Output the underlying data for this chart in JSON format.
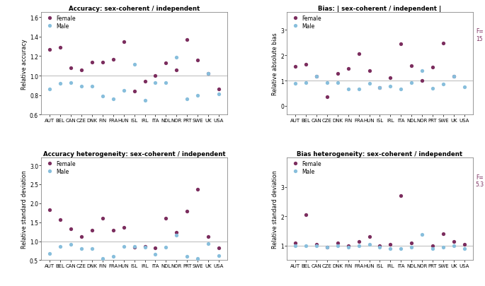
{
  "countries": [
    "AUT",
    "BEL",
    "CAN",
    "CZE",
    "DNK",
    "FIN",
    "FRA",
    "HUN",
    "ISL",
    "IRL",
    "ITA",
    "NDL",
    "NOR",
    "PRT",
    "SWE",
    "UK",
    "USA"
  ],
  "female_color": "#7B2D5E",
  "male_color": "#87BEDC",
  "ref_line_color": "#C0C0C0",
  "background_color": "#FFFFFF",
  "acc_female": [
    1.27,
    1.29,
    1.08,
    1.06,
    1.14,
    1.14,
    1.17,
    1.35,
    0.84,
    0.94,
    1.0,
    1.13,
    1.06,
    1.37,
    1.16,
    1.02,
    0.86
  ],
  "acc_male": [
    0.86,
    0.92,
    0.93,
    0.89,
    0.89,
    0.79,
    0.76,
    0.85,
    1.12,
    0.75,
    0.93,
    0.93,
    1.19,
    0.76,
    0.8,
    1.02,
    0.81
  ],
  "bias_female": [
    1.55,
    1.65,
    1.18,
    0.35,
    1.28,
    1.47,
    2.05,
    1.4,
    0.72,
    1.12,
    2.45,
    1.6,
    1.0,
    1.52,
    2.48,
    1.18,
    null
  ],
  "bias_male": [
    0.9,
    0.91,
    1.18,
    0.91,
    0.91,
    0.67,
    0.67,
    0.9,
    0.72,
    0.79,
    0.66,
    0.91,
    1.4,
    0.68,
    0.86,
    1.17,
    0.76
  ],
  "bias_ylim": [
    -0.35,
    3.7
  ],
  "bias_yticks": [
    0,
    1,
    2,
    3
  ],
  "acc_het_female": [
    1.83,
    1.57,
    1.32,
    1.12,
    1.29,
    1.6,
    1.29,
    1.37,
    0.84,
    0.86,
    0.82,
    1.6,
    1.24,
    1.8,
    2.36,
    1.12,
    0.82
  ],
  "acc_het_male": [
    0.68,
    0.87,
    0.91,
    0.8,
    0.8,
    0.55,
    0.6,
    0.87,
    0.87,
    0.85,
    0.65,
    0.85,
    1.16,
    0.6,
    0.55,
    0.94,
    0.62
  ],
  "bias_het_female": [
    1.1,
    2.05,
    1.05,
    0.95,
    1.1,
    1.0,
    1.15,
    1.3,
    1.0,
    1.05,
    2.7,
    1.1,
    null,
    1.0,
    1.4,
    1.15,
    1.05
  ],
  "bias_het_male": [
    1.0,
    1.0,
    1.0,
    0.95,
    1.0,
    0.95,
    1.0,
    1.05,
    0.95,
    0.9,
    0.9,
    0.95,
    1.38,
    0.9,
    0.95,
    1.0,
    0.9
  ],
  "titles": [
    "Accuracy: sex-coherent / independent",
    "Bias: | sex-coherent / independent |",
    "Accuracy heterogeneity: sex-coherent / independent",
    "Bias heterogeneity: sex-coherent / independent"
  ],
  "ylabels": [
    "Relative accuracy",
    "Relative absolute bias",
    "Relative standard deviation",
    "Relative standard deviation"
  ],
  "acc_ylim": [
    0.6,
    1.65
  ],
  "acc_yticks": [
    0.6,
    0.8,
    1.0,
    1.2,
    1.4,
    1.6
  ],
  "acc_het_ylim": [
    0.5,
    3.2
  ],
  "acc_het_yticks": [
    0.5,
    1.0,
    1.5,
    2.0,
    2.5,
    3.0
  ],
  "bias_het_ylim": [
    0.5,
    4.0
  ],
  "bias_het_yticks": [
    1,
    2,
    3
  ]
}
